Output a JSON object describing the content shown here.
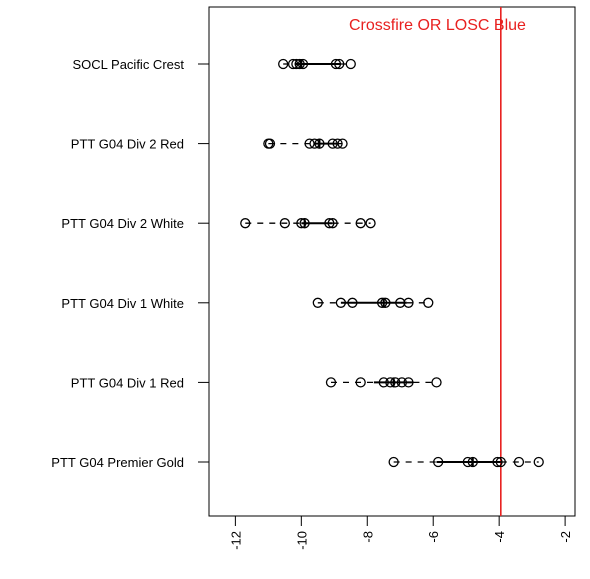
{
  "chart_data": {
    "type": "box",
    "orientation": "horizontal",
    "title": "",
    "xlabel": "",
    "ylabel": "",
    "xlim": [
      -12.8,
      -1.7
    ],
    "xticks": [
      -12,
      -10,
      -8,
      -6,
      -4,
      -2
    ],
    "xtick_labels": [
      "-12",
      "-10",
      "-8",
      "-6",
      "-4",
      "-2"
    ],
    "reference_line": {
      "x": -3.95,
      "label": "Crossfire OR LOSC Blue",
      "color": "#e8201f"
    },
    "categories": [
      "SOCL Pacific Crest",
      "PTT G04 Div 2 Red",
      "PTT G04 Div 2 White",
      "PTT G04 Div 1 White",
      "PTT G04 Div 1 Red",
      "PTT G04 Premier Gold"
    ],
    "series": [
      {
        "box": {
          "lower_whisker": -10.55,
          "q1": -10.2,
          "median": -10.0,
          "q3": -8.8,
          "upper_whisker": -8.5
        },
        "points": [
          -10.55,
          -10.25,
          -10.15,
          -10.05,
          -9.95,
          -8.95,
          -8.85,
          -8.5
        ]
      },
      {
        "box": {
          "lower_whisker": -11.0,
          "q1": -9.6,
          "median": -9.45,
          "q3": -8.9,
          "upper_whisker": -8.75
        },
        "points": [
          -11.0,
          -10.95,
          -9.75,
          -9.6,
          -9.45,
          -9.05,
          -8.9,
          -8.75
        ]
      },
      {
        "box": {
          "lower_whisker": -11.7,
          "q1": -10.0,
          "median": -9.9,
          "q3": -9.05,
          "upper_whisker": -7.9
        },
        "points": [
          -11.7,
          -10.5,
          -10.0,
          -9.9,
          -9.15,
          -9.05,
          -8.2,
          -7.9
        ]
      },
      {
        "box": {
          "lower_whisker": -9.5,
          "q1": -8.8,
          "median": -7.5,
          "q3": -6.8,
          "upper_whisker": -6.15
        },
        "points": [
          -9.5,
          -8.8,
          -8.45,
          -7.55,
          -7.45,
          -7.0,
          -6.75,
          -6.15
        ]
      },
      {
        "box": {
          "lower_whisker": -9.1,
          "q1": -7.8,
          "median": -7.2,
          "q3": -6.6,
          "upper_whisker": -5.9
        },
        "points": [
          -9.1,
          -8.2,
          -7.5,
          -7.3,
          -7.15,
          -6.95,
          -6.75,
          -5.9
        ]
      },
      {
        "box": {
          "lower_whisker": -7.2,
          "q1": -5.9,
          "median": -4.8,
          "q3": -3.95,
          "upper_whisker": -2.8
        },
        "points": [
          -7.2,
          -5.85,
          -4.95,
          -4.8,
          -4.05,
          -3.95,
          -3.4,
          -2.8
        ]
      }
    ]
  }
}
